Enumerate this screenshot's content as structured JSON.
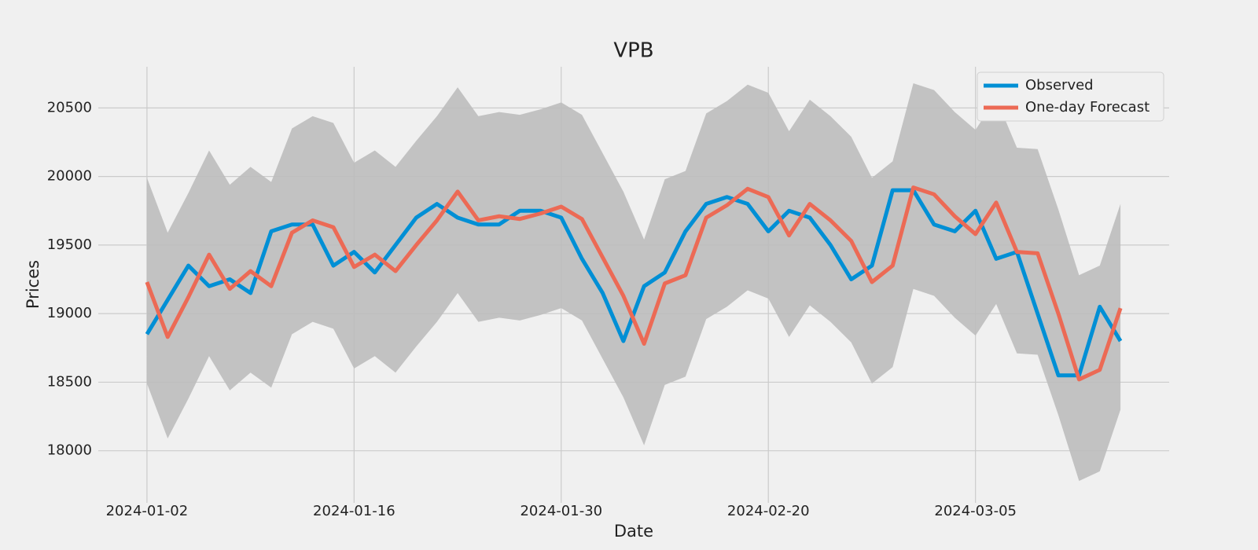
{
  "chart_data": {
    "type": "line",
    "title": "VPB",
    "x_label": "Date",
    "y_label": "Prices",
    "categories": [
      "2024-01-02",
      null,
      null,
      null,
      null,
      null,
      null,
      null,
      null,
      null,
      "2024-01-16",
      null,
      null,
      null,
      null,
      null,
      null,
      null,
      null,
      null,
      "2024-01-30",
      null,
      null,
      null,
      null,
      null,
      null,
      null,
      null,
      null,
      "2024-02-20",
      null,
      null,
      null,
      null,
      null,
      null,
      null,
      null,
      null,
      "2024-03-05",
      null,
      null,
      null,
      null,
      null,
      null,
      null
    ],
    "series": [
      {
        "name": "Observed",
        "color": "#008fd5",
        "values": [
          18850,
          19100,
          19350,
          19200,
          19250,
          19150,
          19600,
          19650,
          19650,
          19350,
          19450,
          19300,
          19500,
          19700,
          19800,
          19700,
          19650,
          19650,
          19750,
          19750,
          19700,
          19400,
          19150,
          18800,
          19200,
          19300,
          19600,
          19800,
          19850,
          19800,
          19600,
          19750,
          19700,
          19500,
          19250,
          19350,
          19900,
          19900,
          19650,
          19600,
          19750,
          19400,
          19450,
          19000,
          18550,
          18550,
          19050,
          18800
        ]
      },
      {
        "name": "One-day Forecast",
        "color": "#ec6a55",
        "values": [
          19230,
          18830,
          19120,
          19430,
          19180,
          19310,
          19200,
          19590,
          19680,
          19630,
          19340,
          19430,
          19310,
          19500,
          19680,
          19890,
          19680,
          19710,
          19690,
          19730,
          19780,
          19690,
          19410,
          19130,
          18780,
          19220,
          19280,
          19700,
          19790,
          19910,
          19850,
          19570,
          19800,
          19680,
          19530,
          19230,
          19350,
          19920,
          19870,
          19710,
          19580,
          19810,
          19450,
          19440,
          19000,
          18520,
          18590,
          19040
        ]
      }
    ],
    "band": {
      "color": "#bdbdbd",
      "upper": [
        19990,
        19590,
        19880,
        20190,
        19940,
        20070,
        19960,
        20350,
        20440,
        20390,
        20100,
        20190,
        20070,
        20260,
        20440,
        20650,
        20440,
        20470,
        20450,
        20490,
        20540,
        20450,
        20170,
        19890,
        19540,
        19980,
        20040,
        20460,
        20550,
        20670,
        20610,
        20330,
        20560,
        20440,
        20290,
        19990,
        20110,
        20680,
        20630,
        20470,
        20340,
        20570,
        20210,
        20200,
        19760,
        19280,
        19350,
        19800
      ],
      "lower": [
        18490,
        18090,
        18380,
        18690,
        18440,
        18570,
        18460,
        18850,
        18940,
        18890,
        18600,
        18690,
        18570,
        18760,
        18940,
        19150,
        18940,
        18970,
        18950,
        18990,
        19040,
        18950,
        18670,
        18390,
        18040,
        18480,
        18540,
        18960,
        19050,
        19170,
        19110,
        18830,
        19060,
        18940,
        18790,
        18490,
        18610,
        19180,
        19130,
        18970,
        18840,
        19070,
        18710,
        18700,
        18260,
        17780,
        17850,
        18300
      ]
    },
    "xlim": [
      -2.35,
      49.35
    ],
    "ylim": [
      17620,
      20800
    ],
    "yticks": [
      18000,
      18500,
      19000,
      19500,
      20000,
      20500
    ],
    "grid": true,
    "legend": "upper right"
  }
}
